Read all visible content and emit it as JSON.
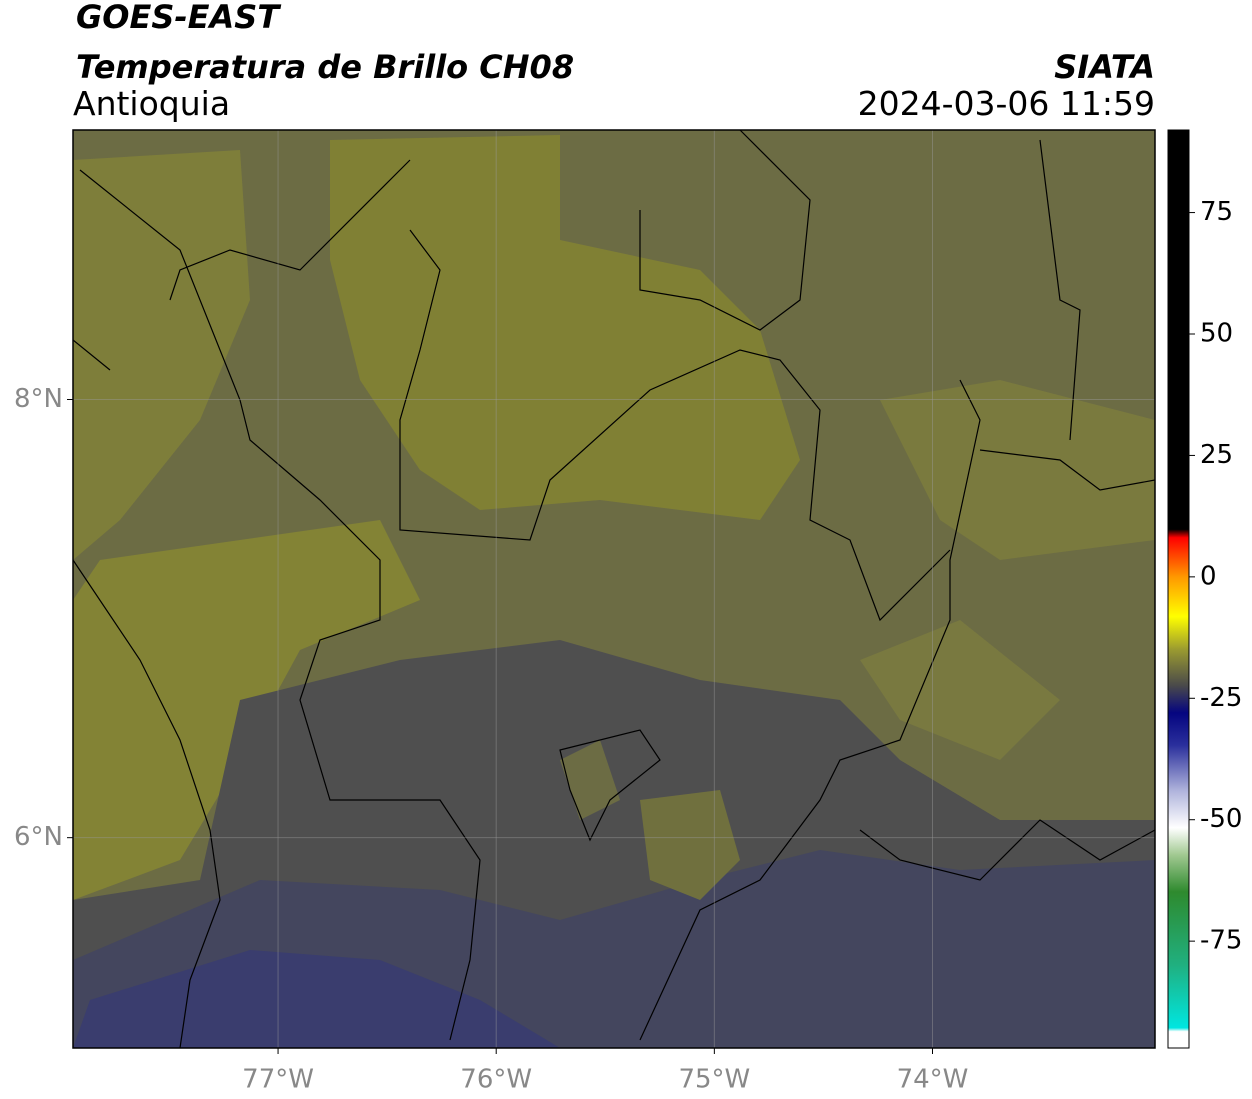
{
  "header": {
    "title": "GOES-EAST",
    "subtitle": "Temperatura de Brillo CH08",
    "region": "Antioquia",
    "source": "SIATA",
    "datetime": "2024-03-06 11:59"
  },
  "map": {
    "xlim": [
      -77.94,
      -72.98
    ],
    "ylim": [
      5.04,
      9.23
    ],
    "xticks": [
      {
        "value": -77,
        "label": "77°W"
      },
      {
        "value": -76,
        "label": "76°W"
      },
      {
        "value": -75,
        "label": "75°W"
      },
      {
        "value": -74,
        "label": "74°W"
      }
    ],
    "yticks": [
      {
        "value": 8,
        "label": "8°N"
      },
      {
        "value": 6,
        "label": "6°N"
      }
    ],
    "grid": true
  },
  "colorbar": {
    "lim": [
      -97,
      92
    ],
    "ticks": [
      75,
      50,
      25,
      0,
      -25,
      -50,
      -75
    ]
  }
}
